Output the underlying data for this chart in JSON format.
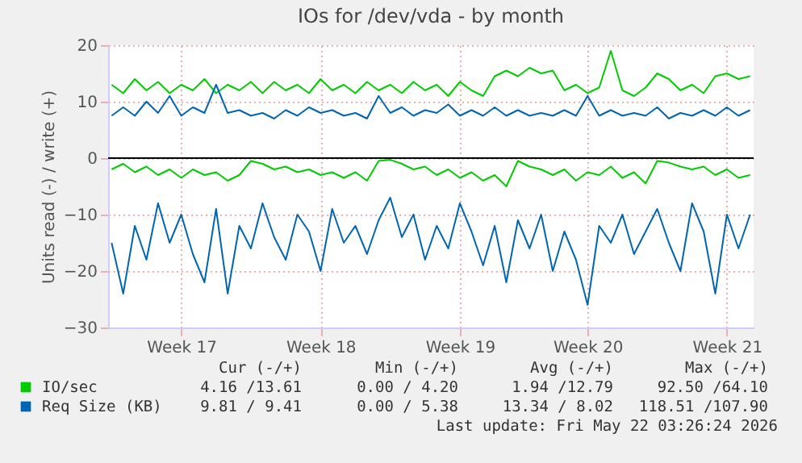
{
  "chart_data": {
    "type": "line",
    "title": "IOs for /dev/vda - by month",
    "ylabel": "Units read (-) / write (+)",
    "categories": [
      null,
      null,
      null,
      null,
      null,
      null,
      "Week 17",
      null,
      null,
      null,
      null,
      null,
      null,
      null,
      null,
      null,
      null,
      null,
      "Week 18",
      null,
      null,
      null,
      null,
      null,
      null,
      null,
      null,
      null,
      null,
      null,
      "Week 19",
      null,
      null,
      null,
      null,
      null,
      null,
      null,
      null,
      null,
      null,
      "Week 20",
      null,
      null,
      null,
      null,
      null,
      null,
      null,
      null,
      null,
      null,
      null,
      "Week 21",
      null,
      null
    ],
    "series": [
      {
        "name": "IO/sec",
        "color": "#00cc00",
        "values": [
          13,
          11.5,
          14,
          12,
          13.5,
          11.5,
          13,
          12,
          14,
          11.5,
          13,
          12,
          13.5,
          11.5,
          13.5,
          12,
          13,
          11.5,
          14,
          12,
          13,
          11.5,
          13.5,
          12,
          13,
          11.5,
          13.5,
          12,
          13,
          11,
          13.5,
          12,
          11,
          14.5,
          15.5,
          14.5,
          16,
          15,
          15.5,
          12,
          13,
          11.5,
          12.5,
          19,
          12,
          11,
          12.5,
          15,
          14,
          12,
          13,
          11.5,
          14.5,
          15,
          14,
          14.5
        ]
      },
      {
        "color": "#00cc00",
        "values": [
          -2,
          -1,
          -2.5,
          -1.5,
          -3,
          -2,
          -3.5,
          -2,
          -3,
          -2.5,
          -4,
          -3,
          -0.5,
          -1,
          -2,
          -1.5,
          -2.5,
          -2,
          -3,
          -2.5,
          -3.5,
          -2.5,
          -4,
          -0.5,
          -0.3,
          -1,
          -2,
          -1.5,
          -3,
          -2,
          -3.5,
          -2.5,
          -4,
          -3,
          -5,
          -0.5,
          -1.5,
          -2,
          -3,
          -2,
          -4,
          -2.5,
          -3,
          -1.5,
          -3.5,
          -2.5,
          -4.5,
          -0.5,
          -0.8,
          -1.5,
          -2,
          -1.5,
          -3,
          -2,
          -3.5,
          -3
        ]
      },
      {
        "name": "Req Size (KB)",
        "color": "#0066b3",
        "values": [
          7.5,
          9,
          7.5,
          10,
          8,
          11,
          7.5,
          9,
          8,
          13,
          8,
          8.5,
          7.5,
          8,
          7,
          8.5,
          7.5,
          9,
          8,
          8.5,
          7.5,
          8,
          7,
          11,
          8,
          9,
          7.5,
          8.5,
          8,
          9.5,
          7.5,
          8.5,
          7.5,
          9,
          7.5,
          8.5,
          7.5,
          8,
          7.5,
          8.5,
          7.5,
          11,
          7.5,
          8.5,
          7.5,
          8,
          7.5,
          9,
          7,
          8,
          7.5,
          8.5,
          7.5,
          9,
          7.5,
          8.5
        ]
      },
      {
        "color": "#0066b3",
        "values": [
          -15,
          -24,
          -12,
          -18,
          -8,
          -15,
          -10,
          -17,
          -22,
          -9,
          -24,
          -12,
          -16,
          -8,
          -14,
          -18,
          -10,
          -13,
          -20,
          -9,
          -15,
          -12,
          -17,
          -11,
          -7,
          -14,
          -10,
          -18,
          -12,
          -16,
          -8,
          -13,
          -19,
          -12,
          -22,
          -11,
          -16,
          -10,
          -20,
          -13,
          -18,
          -26,
          -12,
          -15,
          -10,
          -17,
          -13,
          -9,
          -15,
          -20,
          -8,
          -13,
          -24,
          -10,
          -16,
          -10
        ]
      }
    ],
    "ylim": [
      -30,
      20
    ],
    "yticks": [
      -30,
      -20,
      -10,
      0,
      10,
      20
    ],
    "grid": true,
    "legend": "bottom",
    "ref_lines": [
      {
        "axis": "y",
        "value": 0,
        "color": "#000000"
      }
    ],
    "annotations": [
      "Cur (-/+)",
      "Min (-/+)",
      "Avg (-/+)",
      "Max (-/+)",
      "4.16 /13.61",
      "0.00 / 4.20",
      "1.94 /12.79",
      "92.50 /64.10",
      "9.81 / 9.41",
      "0.00 / 5.38",
      "13.34 / 8.02",
      "118.51 /107.90",
      "Last update: Fri May 22 03:26:24 2026"
    ]
  }
}
